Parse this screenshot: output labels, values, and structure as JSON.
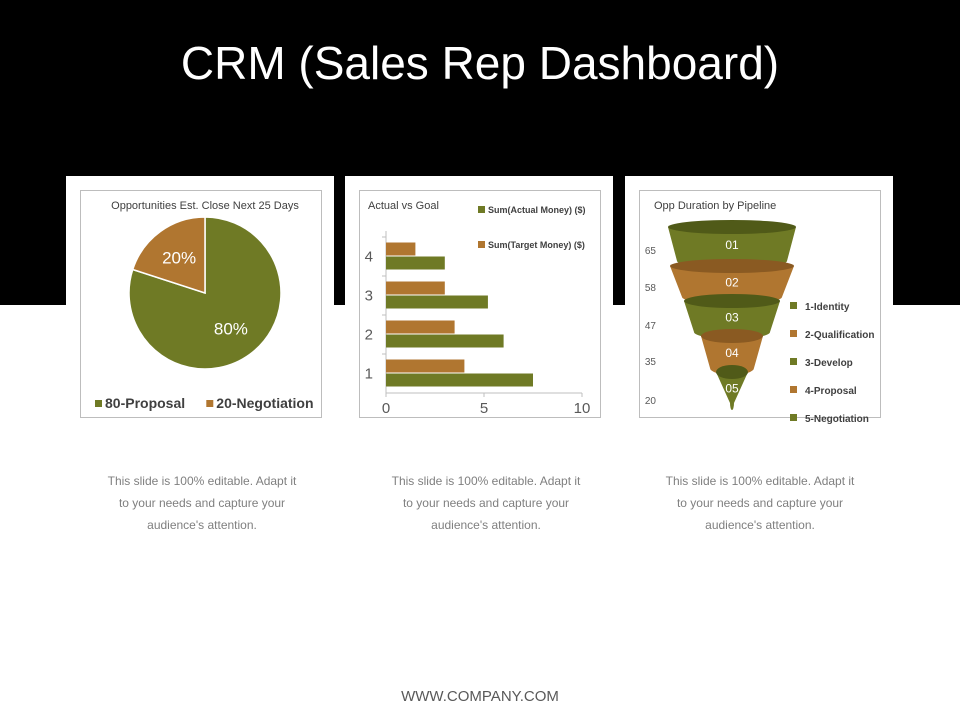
{
  "slide": {
    "title": "CRM (Sales Rep Dashboard)",
    "footer": "WWW.COMPANY.COM",
    "captions": [
      [
        "This slide is 100% editable. Adapt it",
        "to your needs and capture your",
        "audience's attention."
      ],
      [
        "This slide is 100% editable. Adapt it",
        "to your needs and capture your",
        "audience's attention."
      ],
      [
        "This slide is 100% editable. Adapt it",
        "to your needs and capture your",
        "audience's attention."
      ]
    ]
  },
  "colors": {
    "olive": "#6f7a25",
    "brown": "#b07630",
    "background_band": "#000000"
  },
  "chart_data": [
    {
      "type": "pie",
      "title": "Opportunities Est. Close Next 25 Days",
      "slices": [
        {
          "label": "80-Proposal",
          "value": 80,
          "display": "80%",
          "color": "#6f7a25"
        },
        {
          "label": "20-Negotiation",
          "value": 20,
          "display": "20%",
          "color": "#b07630"
        }
      ],
      "legend": "bottom"
    },
    {
      "type": "bar",
      "orientation": "horizontal",
      "title": "Actual vs Goal",
      "categories": [
        "1",
        "2",
        "3",
        "4"
      ],
      "series": [
        {
          "name": "Sum(Actual Money) ($)",
          "values": [
            7.5,
            6,
            5.2,
            3
          ],
          "color": "#6f7a25"
        },
        {
          "name": "Sum(Target Money) ($)",
          "values": [
            4,
            3.5,
            3,
            1.5
          ],
          "color": "#b07630"
        }
      ],
      "xlim": [
        0,
        10
      ],
      "xticks": [
        "0",
        "5",
        "10"
      ],
      "legend": "top-right"
    },
    {
      "type": "funnel",
      "title": "Opp Duration by Pipeline",
      "stages": [
        {
          "label": "01",
          "legend": "1-Identity",
          "value": 65,
          "color": "#6f7a25"
        },
        {
          "label": "02",
          "legend": "2-Qualification",
          "value": 58,
          "color": "#b07630"
        },
        {
          "label": "03",
          "legend": "3-Develop",
          "value": 47,
          "color": "#6f7a25"
        },
        {
          "label": "04",
          "legend": "4-Proposal",
          "value": 35,
          "color": "#b07630"
        },
        {
          "label": "05",
          "legend": "5-Negotiation",
          "value": 20,
          "color": "#6f7a25"
        }
      ],
      "legend": "right"
    }
  ]
}
